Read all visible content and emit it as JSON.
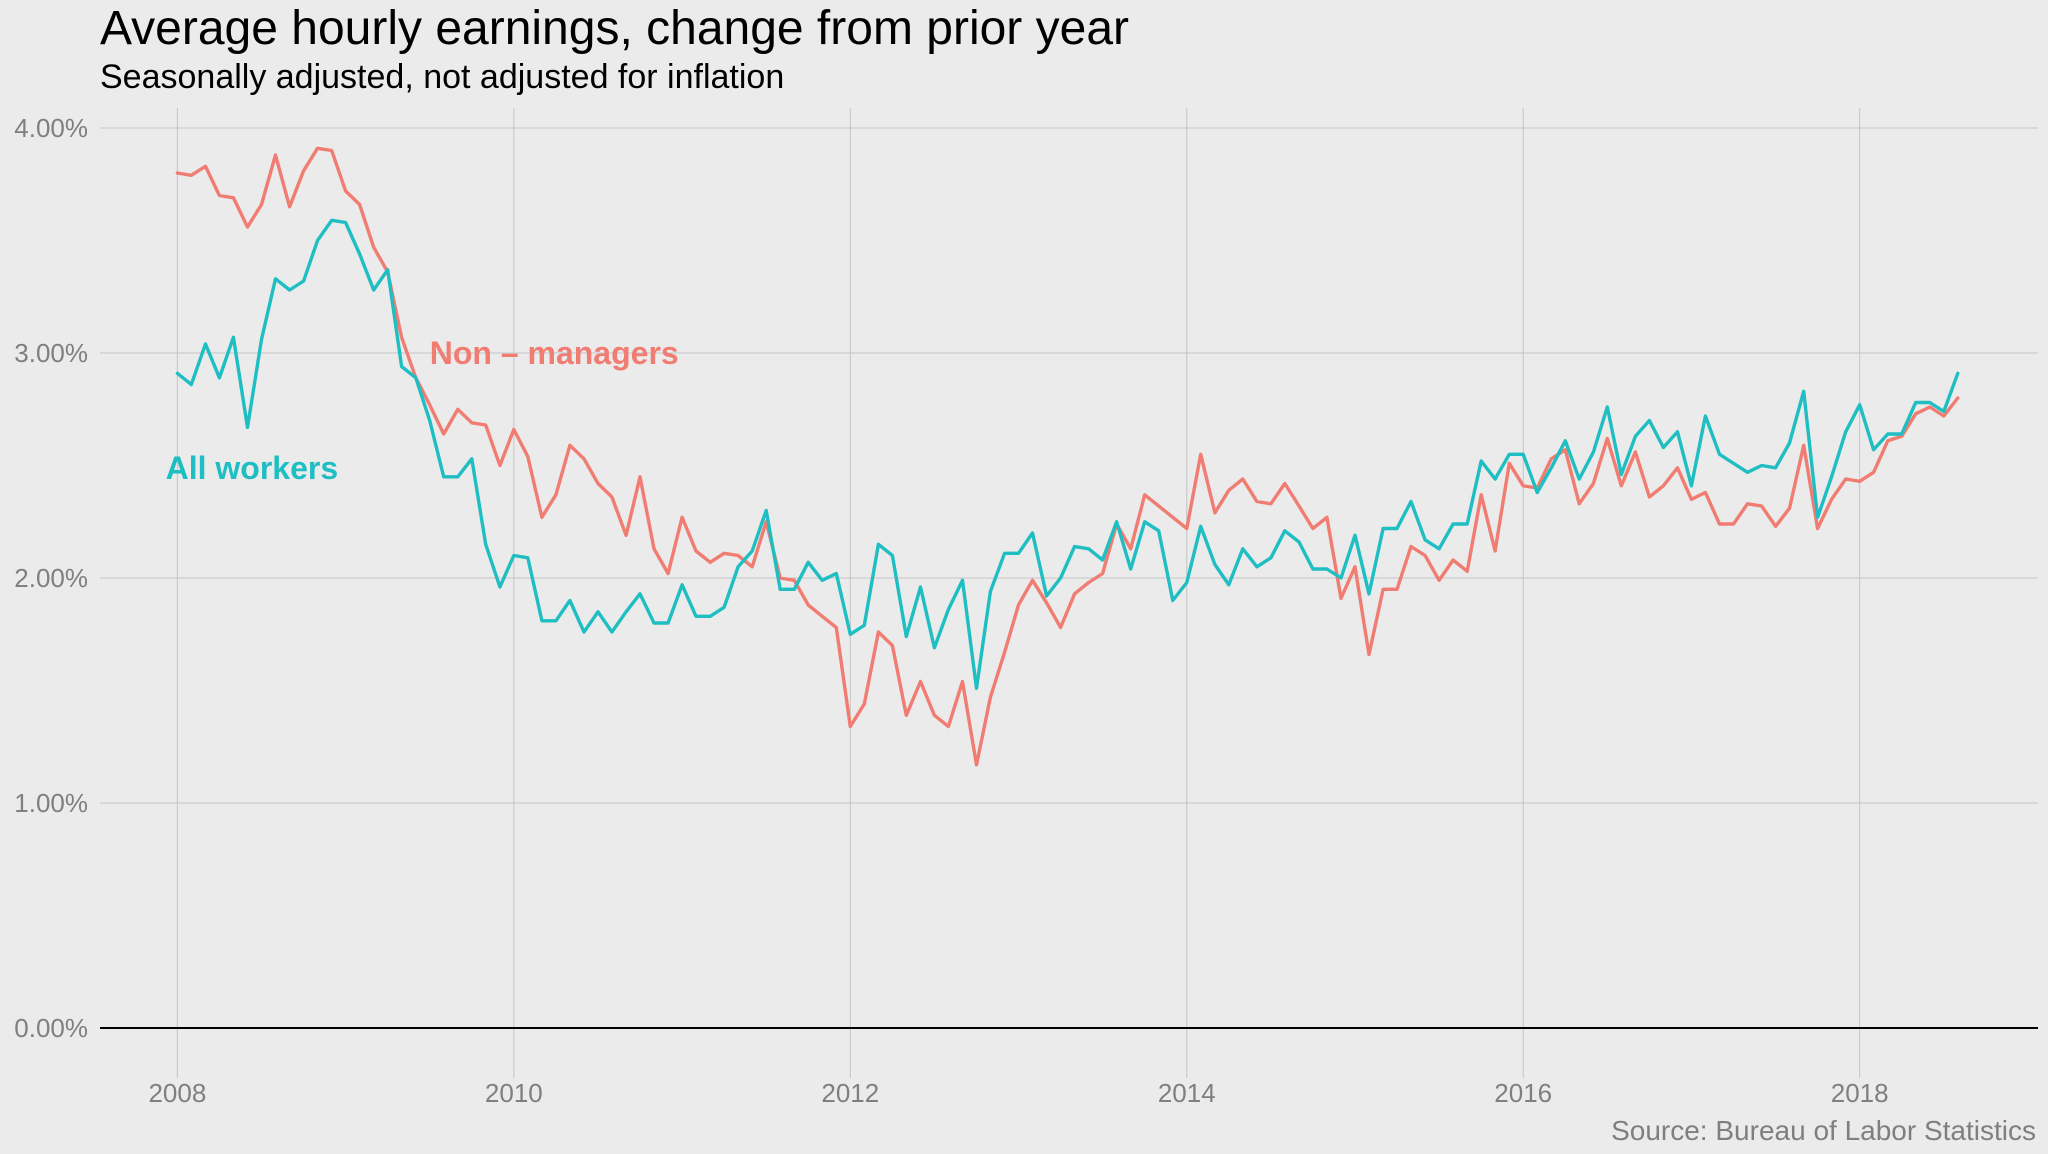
{
  "chart_data": {
    "type": "line",
    "title": "Average hourly earnings, change from prior year",
    "subtitle": "Seasonally adjusted, not adjusted for inflation",
    "caption": "Source: Bureau of Labor Statistics",
    "xlabel": "",
    "ylabel": "",
    "xlim": [
      2007.54,
      2019.06
    ],
    "ylim": [
      0,
      4.05
    ],
    "x_ticks": [
      2008,
      2010,
      2012,
      2014,
      2016,
      2018
    ],
    "x_tick_labels": [
      "2008",
      "2010",
      "2012",
      "2014",
      "2016",
      "2018"
    ],
    "y_ticks": [
      0,
      1,
      2,
      3,
      4
    ],
    "y_tick_labels": [
      "0.00%",
      "1.00%",
      "2.00%",
      "3.00%",
      "4.00%"
    ],
    "grid": true,
    "legend": "none (direct labels)",
    "series": [
      {
        "name": "Non – managers",
        "color": "#f07c72",
        "label_position": "middle-left",
        "x": [
          2008.0,
          2008.083,
          2008.167,
          2008.25,
          2008.333,
          2008.417,
          2008.5,
          2008.583,
          2008.667,
          2008.75,
          2008.833,
          2008.917,
          2009.0,
          2009.083,
          2009.167,
          2009.25,
          2009.333,
          2009.417,
          2009.5,
          2009.583,
          2009.667,
          2009.75,
          2009.833,
          2009.917,
          2010.0,
          2010.083,
          2010.167,
          2010.25,
          2010.333,
          2010.417,
          2010.5,
          2010.583,
          2010.667,
          2010.75,
          2010.833,
          2010.917,
          2011.0,
          2011.083,
          2011.167,
          2011.25,
          2011.333,
          2011.417,
          2011.5,
          2011.583,
          2011.667,
          2011.75,
          2011.833,
          2011.917,
          2012.0,
          2012.083,
          2012.167,
          2012.25,
          2012.333,
          2012.417,
          2012.5,
          2012.583,
          2012.667,
          2012.75,
          2012.833,
          2012.917,
          2013.0,
          2013.083,
          2013.167,
          2013.25,
          2013.333,
          2013.417,
          2013.5,
          2013.583,
          2013.667,
          2013.75,
          2013.833,
          2013.917,
          2014.0,
          2014.083,
          2014.167,
          2014.25,
          2014.333,
          2014.417,
          2014.5,
          2014.583,
          2014.667,
          2014.75,
          2014.833,
          2014.917,
          2015.0,
          2015.083,
          2015.167,
          2015.25,
          2015.333,
          2015.417,
          2015.5,
          2015.583,
          2015.667,
          2015.75,
          2015.833,
          2015.917,
          2016.0,
          2016.083,
          2016.167,
          2016.25,
          2016.333,
          2016.417,
          2016.5,
          2016.583,
          2016.667,
          2016.75,
          2016.833,
          2016.917,
          2017.0,
          2017.083,
          2017.167,
          2017.25,
          2017.333,
          2017.417,
          2017.5,
          2017.583,
          2017.667,
          2017.75,
          2017.833,
          2017.917,
          2018.0,
          2018.083,
          2018.167,
          2018.25,
          2018.333,
          2018.417,
          2018.5,
          2018.583
        ],
        "values": [
          3.8,
          3.79,
          3.83,
          3.7,
          3.69,
          3.56,
          3.66,
          3.88,
          3.65,
          3.81,
          3.91,
          3.9,
          3.72,
          3.66,
          3.47,
          3.36,
          3.07,
          2.89,
          2.77,
          2.64,
          2.75,
          2.69,
          2.68,
          2.5,
          2.66,
          2.54,
          2.27,
          2.37,
          2.59,
          2.53,
          2.42,
          2.36,
          2.19,
          2.45,
          2.13,
          2.02,
          2.27,
          2.12,
          2.07,
          2.11,
          2.1,
          2.05,
          2.25,
          2.0,
          1.99,
          1.88,
          1.83,
          1.78,
          1.34,
          1.44,
          1.76,
          1.7,
          1.39,
          1.54,
          1.39,
          1.34,
          1.54,
          1.17,
          1.47,
          1.67,
          1.88,
          1.99,
          1.89,
          1.78,
          1.93,
          1.98,
          2.02,
          2.24,
          2.13,
          2.37,
          2.32,
          2.27,
          2.22,
          2.55,
          2.29,
          2.39,
          2.44,
          2.34,
          2.33,
          2.42,
          2.32,
          2.22,
          2.27,
          1.91,
          2.05,
          1.66,
          1.95,
          1.95,
          2.14,
          2.1,
          1.99,
          2.08,
          2.03,
          2.37,
          2.12,
          2.51,
          2.41,
          2.4,
          2.53,
          2.57,
          2.33,
          2.42,
          2.62,
          2.41,
          2.56,
          2.36,
          2.41,
          2.49,
          2.35,
          2.38,
          2.24,
          2.24,
          2.33,
          2.32,
          2.23,
          2.31,
          2.59,
          2.22,
          2.35,
          2.44,
          2.43,
          2.47,
          2.61,
          2.63,
          2.73,
          2.76,
          2.72,
          2.8
        ]
      },
      {
        "name": "All workers",
        "color": "#1ebec2",
        "label_position": "left",
        "x": [
          2008.0,
          2008.083,
          2008.167,
          2008.25,
          2008.333,
          2008.417,
          2008.5,
          2008.583,
          2008.667,
          2008.75,
          2008.833,
          2008.917,
          2009.0,
          2009.083,
          2009.167,
          2009.25,
          2009.333,
          2009.417,
          2009.5,
          2009.583,
          2009.667,
          2009.75,
          2009.833,
          2009.917,
          2010.0,
          2010.083,
          2010.167,
          2010.25,
          2010.333,
          2010.417,
          2010.5,
          2010.583,
          2010.667,
          2010.75,
          2010.833,
          2010.917,
          2011.0,
          2011.083,
          2011.167,
          2011.25,
          2011.333,
          2011.417,
          2011.5,
          2011.583,
          2011.667,
          2011.75,
          2011.833,
          2011.917,
          2012.0,
          2012.083,
          2012.167,
          2012.25,
          2012.333,
          2012.417,
          2012.5,
          2012.583,
          2012.667,
          2012.75,
          2012.833,
          2012.917,
          2013.0,
          2013.083,
          2013.167,
          2013.25,
          2013.333,
          2013.417,
          2013.5,
          2013.583,
          2013.667,
          2013.75,
          2013.833,
          2013.917,
          2014.0,
          2014.083,
          2014.167,
          2014.25,
          2014.333,
          2014.417,
          2014.5,
          2014.583,
          2014.667,
          2014.75,
          2014.833,
          2014.917,
          2015.0,
          2015.083,
          2015.167,
          2015.25,
          2015.333,
          2015.417,
          2015.5,
          2015.583,
          2015.667,
          2015.75,
          2015.833,
          2015.917,
          2016.0,
          2016.083,
          2016.167,
          2016.25,
          2016.333,
          2016.417,
          2016.5,
          2016.583,
          2016.667,
          2016.75,
          2016.833,
          2016.917,
          2017.0,
          2017.083,
          2017.167,
          2017.25,
          2017.333,
          2017.417,
          2017.5,
          2017.583,
          2017.667,
          2017.75,
          2017.833,
          2017.917,
          2018.0,
          2018.083,
          2018.167,
          2018.25,
          2018.333,
          2018.417,
          2018.5,
          2018.583
        ],
        "values": [
          2.91,
          2.86,
          3.04,
          2.89,
          3.07,
          2.67,
          3.06,
          3.33,
          3.28,
          3.32,
          3.5,
          3.59,
          3.58,
          3.44,
          3.28,
          3.37,
          2.94,
          2.89,
          2.7,
          2.45,
          2.45,
          2.53,
          2.15,
          1.96,
          2.1,
          2.09,
          1.81,
          1.81,
          1.9,
          1.76,
          1.85,
          1.76,
          1.85,
          1.93,
          1.8,
          1.8,
          1.97,
          1.83,
          1.83,
          1.87,
          2.05,
          2.12,
          2.3,
          1.95,
          1.95,
          2.07,
          1.99,
          2.02,
          1.75,
          1.79,
          2.15,
          2.1,
          1.74,
          1.96,
          1.69,
          1.86,
          1.99,
          1.51,
          1.94,
          2.11,
          2.11,
          2.2,
          1.92,
          2.0,
          2.14,
          2.13,
          2.08,
          2.25,
          2.04,
          2.25,
          2.21,
          1.9,
          1.98,
          2.23,
          2.06,
          1.97,
          2.13,
          2.05,
          2.09,
          2.21,
          2.16,
          2.04,
          2.04,
          2.0,
          2.19,
          1.93,
          2.22,
          2.22,
          2.34,
          2.17,
          2.13,
          2.24,
          2.24,
          2.52,
          2.44,
          2.55,
          2.55,
          2.38,
          2.49,
          2.61,
          2.44,
          2.56,
          2.76,
          2.46,
          2.63,
          2.7,
          2.58,
          2.65,
          2.41,
          2.72,
          2.55,
          2.51,
          2.47,
          2.5,
          2.49,
          2.6,
          2.83,
          2.27,
          2.45,
          2.65,
          2.77,
          2.57,
          2.64,
          2.64,
          2.78,
          2.78,
          2.74,
          2.91
        ]
      }
    ]
  }
}
